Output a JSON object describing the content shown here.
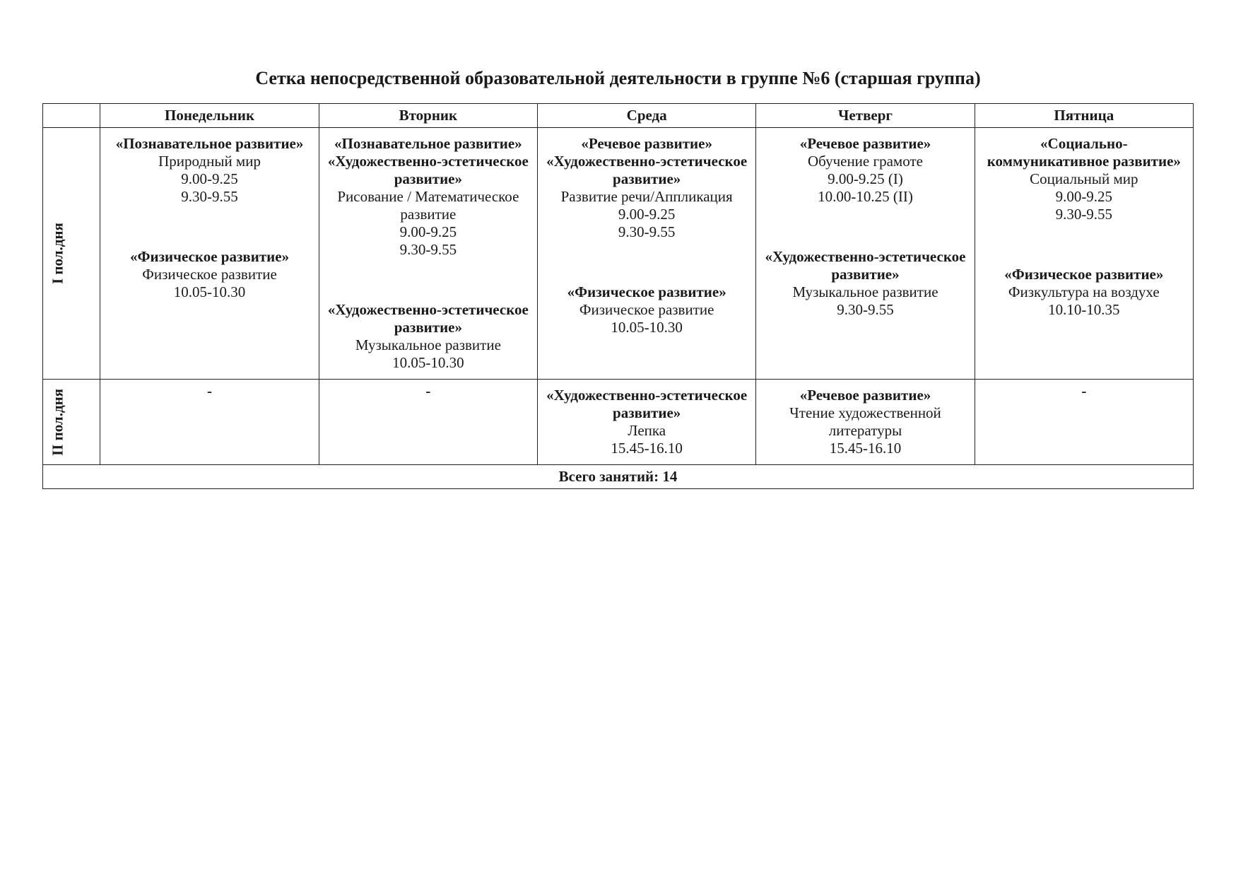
{
  "title": "Сетка непосредственной образовательной деятельности в  группе №6 (старшая группа)",
  "row_labels": {
    "first": "I пол.дня",
    "second": "II пол.дня"
  },
  "days": [
    "Понедельник",
    "Вторник",
    "Среда",
    "Четверг",
    "Пятница"
  ],
  "footer": "Всего занятий:   14",
  "table_style": {
    "border_color": "#222222",
    "font_family": "Times New Roman",
    "header_fontsize_pt": 16,
    "cell_fontsize_pt": 16,
    "background_color": "#ffffff"
  },
  "first_half": {
    "mon": [
      {
        "area": "«Познавательное развитие»",
        "subject": "Природный мир",
        "times": [
          "9.00-9.25",
          "9.30-9.55"
        ]
      },
      {
        "area": "«Физическое развитие»",
        "subject": "Физическое развитие",
        "times": [
          "10.05-10.30"
        ]
      }
    ],
    "tue": [
      {
        "area": "«Познавательное развитие»\n«Художественно-эстетическое развитие»",
        "subject": "Рисование / Математическое развитие",
        "times": [
          "9.00-9.25",
          "9.30-9.55"
        ]
      },
      {
        "area": "«Художественно-эстетическое развитие»",
        "subject": "Музыкальное развитие",
        "times": [
          "10.05-10.30"
        ]
      }
    ],
    "wed": [
      {
        "area": "«Речевое развитие»\n«Художественно-эстетическое развитие»",
        "subject": "Развитие речи/Аппликация",
        "times": [
          "9.00-9.25",
          "9.30-9.55"
        ]
      },
      {
        "area": "«Физическое развитие»",
        "subject": "Физическое развитие",
        "times": [
          "10.05-10.30"
        ]
      }
    ],
    "thu": [
      {
        "area": "«Речевое развитие»",
        "subject": "Обучение грамоте",
        "times": [
          "9.00-9.25 (I)",
          "10.00-10.25 (II)"
        ]
      },
      {
        "area": "«Художественно-эстетическое развитие»",
        "subject": "Музыкальное развитие",
        "times": [
          "9.30-9.55"
        ]
      }
    ],
    "fri": [
      {
        "area": "«Социально-коммуникативное развитие»",
        "subject": "Социальный мир",
        "times": [
          "9.00-9.25",
          "9.30-9.55"
        ]
      },
      {
        "area": "«Физическое развитие»",
        "subject": "Физкультура на воздухе",
        "times": [
          "10.10-10.35"
        ]
      }
    ]
  },
  "second_half": {
    "mon": null,
    "tue": null,
    "wed": [
      {
        "area": "«Художественно-эстетическое развитие»",
        "subject": "Лепка",
        "times": [
          "15.45-16.10"
        ]
      }
    ],
    "thu": [
      {
        "area": "«Речевое развитие»",
        "subject": "Чтение художественной литературы",
        "times": [
          "15.45-16.10"
        ]
      }
    ],
    "fri": null
  }
}
